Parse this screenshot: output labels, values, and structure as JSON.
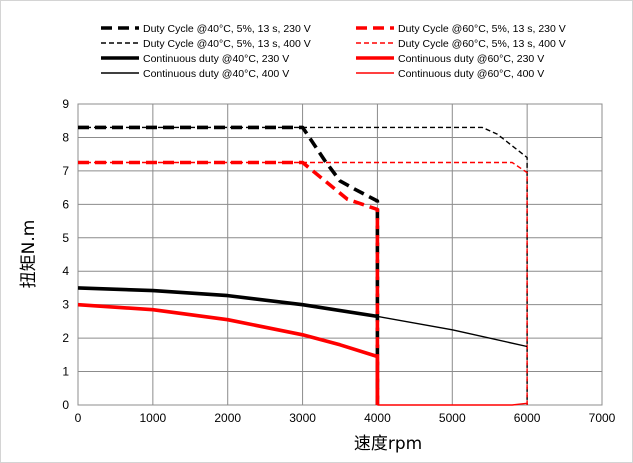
{
  "chart_data": {
    "type": "line",
    "title": "",
    "xlabel": "速度rpm",
    "ylabel": "扭矩N.m",
    "xlim": [
      0,
      7000
    ],
    "ylim": [
      0,
      9
    ],
    "xticks": [
      0,
      1000,
      2000,
      3000,
      4000,
      5000,
      6000,
      7000
    ],
    "yticks": [
      0,
      1,
      2,
      3,
      4,
      5,
      6,
      7,
      8,
      9
    ],
    "grid": true,
    "legend_placement": "top",
    "series": [
      {
        "name": "Duty Cycle @40°C, 5%, 13 s, 230 V",
        "color": "#000000",
        "style": "dash",
        "weight": "thick",
        "points": [
          [
            0,
            8.3
          ],
          [
            3000,
            8.3
          ],
          [
            3300,
            7.3
          ],
          [
            3500,
            6.7
          ],
          [
            3700,
            6.45
          ],
          [
            4000,
            6.1
          ],
          [
            4000,
            0
          ]
        ]
      },
      {
        "name": "Duty Cycle @60°C, 5%, 13 s, 230 V",
        "color": "#ff0000",
        "style": "dash",
        "weight": "thick",
        "points": [
          [
            0,
            7.25
          ],
          [
            3000,
            7.25
          ],
          [
            3300,
            6.7
          ],
          [
            3600,
            6.15
          ],
          [
            4000,
            5.85
          ],
          [
            4000,
            0
          ]
        ]
      },
      {
        "name": "Duty Cycle @40°C, 5%, 13 s, 400 V",
        "color": "#000000",
        "style": "dash",
        "weight": "thin",
        "points": [
          [
            0,
            8.3
          ],
          [
            5400,
            8.3
          ],
          [
            5600,
            8.1
          ],
          [
            6000,
            7.4
          ],
          [
            6000,
            0
          ]
        ]
      },
      {
        "name": "Duty Cycle @60°C, 5%, 13 s, 400 V",
        "color": "#ff0000",
        "style": "dash",
        "weight": "thin",
        "points": [
          [
            0,
            7.25
          ],
          [
            5800,
            7.25
          ],
          [
            6000,
            6.95
          ],
          [
            6000,
            0
          ]
        ]
      },
      {
        "name": "Continuous duty @40°C, 230 V",
        "color": "#000000",
        "style": "solid",
        "weight": "thick",
        "points": [
          [
            0,
            3.5
          ],
          [
            1000,
            3.42
          ],
          [
            2000,
            3.27
          ],
          [
            3000,
            3.0
          ],
          [
            4000,
            2.65
          ]
        ]
      },
      {
        "name": "Continuous duty @60°C, 230 V",
        "color": "#ff0000",
        "style": "solid",
        "weight": "thick",
        "points": [
          [
            0,
            3.0
          ],
          [
            1000,
            2.85
          ],
          [
            2000,
            2.55
          ],
          [
            3000,
            2.1
          ],
          [
            3500,
            1.8
          ],
          [
            4000,
            1.45
          ],
          [
            4000,
            0
          ]
        ]
      },
      {
        "name": "Continuous duty @40°C, 400 V",
        "color": "#000000",
        "style": "solid",
        "weight": "thin",
        "points": [
          [
            4000,
            2.65
          ],
          [
            5000,
            2.25
          ],
          [
            6000,
            1.75
          ]
        ]
      },
      {
        "name": "Continuous duty @60°C, 400 V",
        "color": "#ff0000",
        "style": "solid",
        "weight": "thin",
        "points": [
          [
            4000,
            0
          ],
          [
            5800,
            0
          ],
          [
            6000,
            0.05
          ]
        ]
      }
    ]
  }
}
